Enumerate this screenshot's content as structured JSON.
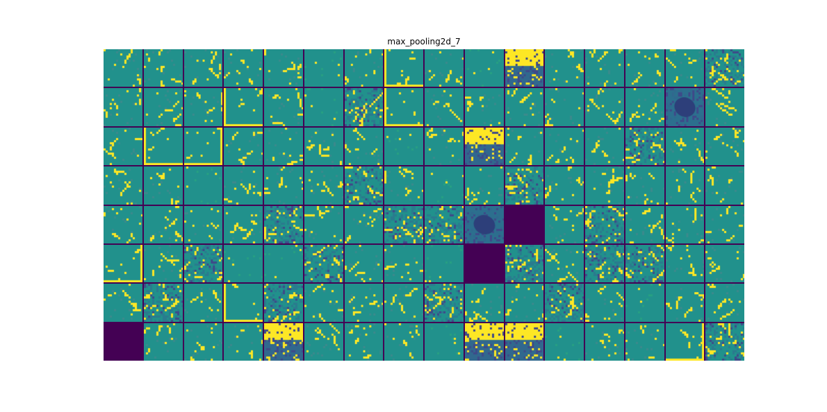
{
  "chart_data": {
    "type": "heatmap",
    "title": "max_pooling2d_7",
    "xlabel": "",
    "ylabel": "",
    "grid": {
      "rows": 8,
      "cols": 16
    },
    "colormap": "viridis",
    "colors": {
      "background": "#ffffff",
      "separator": "#440154",
      "low": "#440154",
      "mid": "#21918c",
      "high": "#fde725",
      "dim": "#2c6f8e"
    },
    "tiles": [
      "sparse",
      "sparse",
      "sparse",
      "sparse",
      "sparse",
      "flat",
      "sparse",
      "edge",
      "sparse",
      "flat",
      "bright",
      "sparse",
      "sparse",
      "sparse",
      "sparse",
      "dense",
      "sparse",
      "sparse",
      "sparse",
      "edge",
      "sparse",
      "flat",
      "dense",
      "edge",
      "sparse",
      "sparse",
      "sparse",
      "sparse",
      "sparse",
      "sparse",
      "dark",
      "sparse",
      "sparse",
      "edge",
      "edge",
      "sparse",
      "sparse",
      "sparse",
      "sparse",
      "flat",
      "sparse",
      "bright",
      "sparse",
      "sparse",
      "sparse",
      "dense",
      "sparse",
      "sparse",
      "sparse",
      "sparse",
      "flat",
      "sparse",
      "sparse",
      "sparse",
      "dense",
      "sparse",
      "flat",
      "sparse",
      "dense",
      "sparse",
      "sparse",
      "sparse",
      "sparse",
      "sparse",
      "sparse",
      "sparse",
      "sparse",
      "sparse",
      "dense",
      "sparse",
      "sparse",
      "dense",
      "dense",
      "dark",
      "empty",
      "sparse",
      "dense",
      "sparse",
      "sparse",
      "sparse",
      "edge",
      "sparse",
      "dense",
      "flat",
      "flat",
      "dense",
      "sparse",
      "sparse",
      "flat",
      "empty",
      "dense",
      "sparse",
      "dense",
      "dense",
      "sparse",
      "sparse",
      "sparse",
      "dense",
      "sparse",
      "edge",
      "dense",
      "sparse",
      "sparse",
      "sparse",
      "dense",
      "sparse",
      "sparse",
      "dense",
      "sparse",
      "flat",
      "sparse",
      "sparse",
      "empty",
      "sparse",
      "sparse",
      "sparse",
      "bright",
      "sparse",
      "sparse",
      "sparse",
      "flat",
      "bright",
      "bright",
      "flat",
      "sparse",
      "sparse",
      "edge",
      "dense"
    ]
  }
}
